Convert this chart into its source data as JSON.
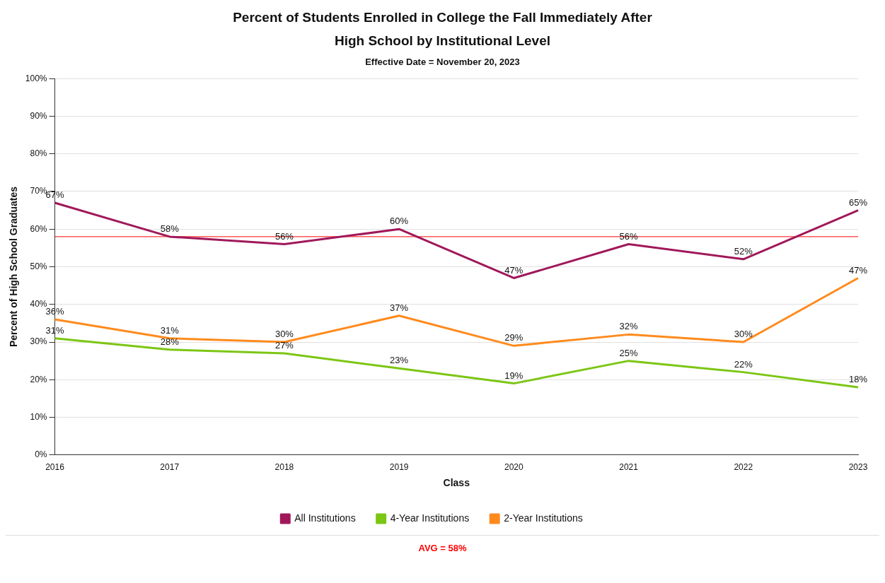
{
  "chart_data": {
    "type": "line",
    "title": "Percent of Students Enrolled in College the Fall Immediately After High School by Institutional Level",
    "subtitle": "Effective Date = November 20, 2023",
    "xlabel": "Class",
    "ylabel": "Percent of High School Graduates",
    "categories": [
      "2016",
      "2017",
      "2018",
      "2019",
      "2020",
      "2021",
      "2022",
      "2023"
    ],
    "series": [
      {
        "name": "All Institutions",
        "color": "#a0185a",
        "values": [
          67,
          58,
          56,
          60,
          47,
          56,
          52,
          65
        ],
        "value_labels": [
          "67%",
          "58%",
          "56%",
          "60%",
          "47%",
          "56%",
          "52%",
          "65%"
        ]
      },
      {
        "name": "4-Year Institutions",
        "color": "#7cc614",
        "values": [
          31,
          28,
          27,
          23,
          19,
          25,
          22,
          18
        ],
        "value_labels": [
          "31%",
          "28%",
          "27%",
          "23%",
          "19%",
          "25%",
          "22%",
          "18%"
        ]
      },
      {
        "name": "2-Year Institutions",
        "color": "#ff8a1c",
        "values": [
          36,
          31,
          30,
          37,
          29,
          32,
          30,
          47
        ],
        "value_labels": [
          "36%",
          "31%",
          "30%",
          "37%",
          "29%",
          "32%",
          "30%",
          "47%"
        ]
      }
    ],
    "ylim": [
      0,
      100
    ],
    "yticks": [
      {
        "value": 0,
        "label": "0%"
      },
      {
        "value": 10,
        "label": "10%"
      },
      {
        "value": 20,
        "label": "20%"
      },
      {
        "value": 30,
        "label": "30%"
      },
      {
        "value": 40,
        "label": "40%"
      },
      {
        "value": 50,
        "label": "50%"
      },
      {
        "value": 60,
        "label": "60%"
      },
      {
        "value": 70,
        "label": "70%"
      },
      {
        "value": 80,
        "label": "80%"
      },
      {
        "value": 90,
        "label": "90%"
      },
      {
        "value": 100,
        "label": "100%"
      }
    ],
    "ref_lines": [
      {
        "axis": "y",
        "value": 58,
        "label": "AVG = 58%",
        "color": "#ff0000"
      }
    ],
    "grid": "y",
    "legend": "bottom",
    "marker": "none",
    "line_style": "solid"
  }
}
